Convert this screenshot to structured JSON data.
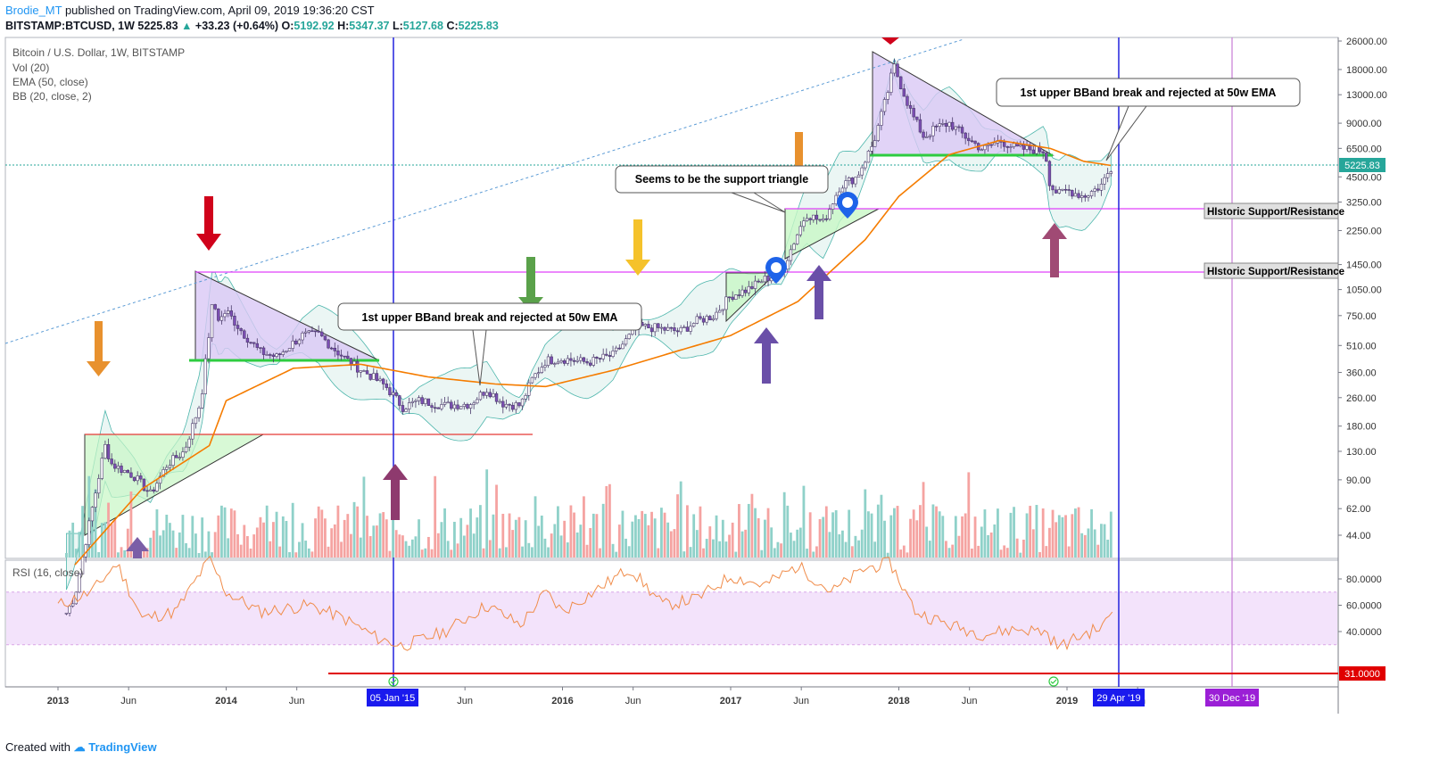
{
  "header": {
    "author": "Brodie_MT",
    "published": " published on TradingView.com, April 09, 2019 19:36:20 CST",
    "symbol": "BITSTAMP:BTCUSD, 1W",
    "last": "5225.83",
    "change": "+33.23 (+0.64%)",
    "o_label": "O:",
    "o_value": "5192.92",
    "h_label": "H:",
    "h_value": "5347.37",
    "l_label": "L:",
    "l_value": "5127.68",
    "c_label": "C:",
    "c_value": "5225.83"
  },
  "legend": {
    "title": "Bitcoin / U.S. Dollar, 1W, BITSTAMP",
    "vol": "Vol (20)",
    "ema": "EMA (50, close)",
    "bb": "BB (20, close, 2)",
    "rsi": "RSI (16, close)"
  },
  "annotations": {
    "callout_left": "1st upper BBand break and rejected at 50w EMA",
    "callout_right": "1st upper BBand break and rejected at 50w EMA",
    "callout_triangle": "Seems to be the support triangle",
    "hist_label_1": "HIstoric Support/Resistance",
    "hist_label_2": "HIstoric Support/Resistance"
  },
  "footer": {
    "created_with": "Created with ",
    "brand": "TradingView"
  },
  "colors": {
    "up": "#26a69a",
    "down": "#ef5350",
    "ema": "#f57c00",
    "bb": "#4db6ac",
    "rsi_line": "#f08c4a",
    "rsi_band": "#f3e3fb",
    "hline": "#e040fb",
    "vline_blue": "#2222dd",
    "vline_purple": "#c77bd6"
  },
  "chart_data": {
    "type": "candlestick",
    "scale": "log",
    "price_axis_ticks": [
      "26000.00",
      "18000.00",
      "13000.00",
      "9000.00",
      "6500.00",
      "4500.00",
      "3250.00",
      "2250.00",
      "1450.00",
      "1050.00",
      "750.00",
      "510.00",
      "360.00",
      "260.00",
      "180.00",
      "130.00",
      "90.00",
      "62.00",
      "44.00"
    ],
    "last_price_label": "5225.83",
    "rsi_axis_ticks": [
      "80.0000",
      "60.0000",
      "40.0000"
    ],
    "rsi_level_label": "31.0000",
    "time_axis_ticks": [
      "2013",
      "Jun",
      "2014",
      "Jun",
      "Jun",
      "2016",
      "Jun",
      "2017",
      "Jun",
      "2018",
      "Jun",
      "2019",
      "Jun"
    ],
    "time_markers": [
      "05 Jan '15",
      "29 Apr '19",
      "30 Dec '19"
    ],
    "price_path": [
      [
        2013.0,
        13
      ],
      [
        2013.1,
        20
      ],
      [
        2013.2,
        60
      ],
      [
        2013.28,
        140
      ],
      [
        2013.32,
        110
      ],
      [
        2013.45,
        95
      ],
      [
        2013.55,
        75
      ],
      [
        2013.65,
        110
      ],
      [
        2013.75,
        130
      ],
      [
        2013.85,
        250
      ],
      [
        2013.92,
        900
      ],
      [
        2013.96,
        700
      ],
      [
        2014.0,
        800
      ],
      [
        2014.1,
        600
      ],
      [
        2014.2,
        470
      ],
      [
        2014.3,
        440
      ],
      [
        2014.45,
        580
      ],
      [
        2014.55,
        590
      ],
      [
        2014.65,
        480
      ],
      [
        2014.75,
        400
      ],
      [
        2014.85,
        350
      ],
      [
        2014.95,
        300
      ],
      [
        2015.05,
        230
      ],
      [
        2015.15,
        250
      ],
      [
        2015.3,
        235
      ],
      [
        2015.45,
        240
      ],
      [
        2015.55,
        290
      ],
      [
        2015.65,
        240
      ],
      [
        2015.75,
        235
      ],
      [
        2015.82,
        330
      ],
      [
        2015.9,
        420
      ],
      [
        2016.0,
        430
      ],
      [
        2016.15,
        410
      ],
      [
        2016.3,
        450
      ],
      [
        2016.45,
        650
      ],
      [
        2016.55,
        640
      ],
      [
        2016.7,
        610
      ],
      [
        2016.8,
        700
      ],
      [
        2016.9,
        750
      ],
      [
        2017.0,
        970
      ],
      [
        2017.1,
        1050
      ],
      [
        2017.2,
        1200
      ],
      [
        2017.3,
        1300
      ],
      [
        2017.4,
        2200
      ],
      [
        2017.45,
        2800
      ],
      [
        2017.55,
        2500
      ],
      [
        2017.65,
        4000
      ],
      [
        2017.75,
        4500
      ],
      [
        2017.85,
        7000
      ],
      [
        2017.93,
        13000
      ],
      [
        2017.97,
        19000
      ],
      [
        2018.02,
        14000
      ],
      [
        2018.08,
        10000
      ],
      [
        2018.15,
        7500
      ],
      [
        2018.22,
        8500
      ],
      [
        2018.3,
        9000
      ],
      [
        2018.4,
        7500
      ],
      [
        2018.5,
        6400
      ],
      [
        2018.6,
        7200
      ],
      [
        2018.7,
        6500
      ],
      [
        2018.8,
        6400
      ],
      [
        2018.87,
        6300
      ],
      [
        2018.9,
        4000
      ],
      [
        2018.95,
        3600
      ],
      [
        2019.0,
        3800
      ],
      [
        2019.1,
        3500
      ],
      [
        2019.2,
        4000
      ],
      [
        2019.27,
        5225
      ]
    ],
    "ema_path": [
      [
        2013.1,
        30
      ],
      [
        2013.5,
        80
      ],
      [
        2013.9,
        140
      ],
      [
        2014.0,
        250
      ],
      [
        2014.4,
        380
      ],
      [
        2014.8,
        400
      ],
      [
        2015.2,
        340
      ],
      [
        2015.6,
        310
      ],
      [
        2015.9,
        300
      ],
      [
        2016.3,
        370
      ],
      [
        2016.7,
        480
      ],
      [
        2017.0,
        580
      ],
      [
        2017.4,
        900
      ],
      [
        2017.8,
        2000
      ],
      [
        2018.0,
        3500
      ],
      [
        2018.3,
        6000
      ],
      [
        2018.6,
        7200
      ],
      [
        2018.9,
        6500
      ],
      [
        2019.1,
        5500
      ],
      [
        2019.27,
        5200
      ]
    ],
    "rsi_path": [
      [
        2013.0,
        60
      ],
      [
        2013.2,
        70
      ],
      [
        2013.35,
        92
      ],
      [
        2013.5,
        50
      ],
      [
        2013.7,
        55
      ],
      [
        2013.9,
        95
      ],
      [
        2014.0,
        70
      ],
      [
        2014.2,
        55
      ],
      [
        2014.5,
        60
      ],
      [
        2014.7,
        50
      ],
      [
        2014.9,
        35
      ],
      [
        2015.05,
        29
      ],
      [
        2015.3,
        40
      ],
      [
        2015.55,
        60
      ],
      [
        2015.75,
        45
      ],
      [
        2015.9,
        70
      ],
      [
        2016.0,
        55
      ],
      [
        2016.4,
        88
      ],
      [
        2016.6,
        60
      ],
      [
        2016.8,
        65
      ],
      [
        2017.0,
        82
      ],
      [
        2017.2,
        75
      ],
      [
        2017.4,
        90
      ],
      [
        2017.6,
        70
      ],
      [
        2017.8,
        88
      ],
      [
        2017.95,
        92
      ],
      [
        2018.1,
        55
      ],
      [
        2018.3,
        45
      ],
      [
        2018.5,
        38
      ],
      [
        2018.7,
        42
      ],
      [
        2018.87,
        40
      ],
      [
        2018.95,
        28
      ],
      [
        2019.1,
        38
      ],
      [
        2019.22,
        44
      ],
      [
        2019.27,
        57
      ]
    ],
    "rsi_band": [
      30,
      70
    ],
    "horizontal_levels": [
      2900,
      1300,
      160
    ]
  }
}
